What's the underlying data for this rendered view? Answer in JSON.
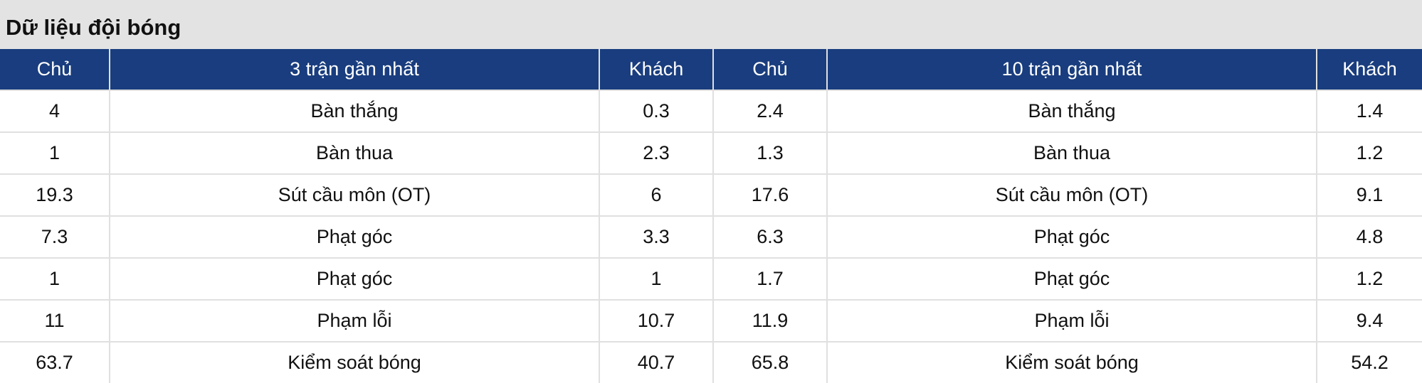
{
  "title": "Dữ liệu đội bóng",
  "headers": [
    "Chủ",
    "3 trận gần nhất",
    "Khách",
    "Chủ",
    "10 trận gần nhất",
    "Khách"
  ],
  "rows": [
    [
      "4",
      "Bàn thắng",
      "0.3",
      "2.4",
      "Bàn thắng",
      "1.4"
    ],
    [
      "1",
      "Bàn thua",
      "2.3",
      "1.3",
      "Bàn thua",
      "1.2"
    ],
    [
      "19.3",
      "Sút cầu môn (OT)",
      "6",
      "17.6",
      "Sút cầu môn (OT)",
      "9.1"
    ],
    [
      "7.3",
      "Phạt góc",
      "3.3",
      "6.3",
      "Phạt góc",
      "4.8"
    ],
    [
      "1",
      "Phạt góc",
      "1",
      "1.7",
      "Phạt góc",
      "1.2"
    ],
    [
      "11",
      "Phạm lỗi",
      "10.7",
      "11.9",
      "Phạm lỗi",
      "9.4"
    ],
    [
      "63.7",
      "Kiểm soát bóng",
      "40.7",
      "65.8",
      "Kiểm soát bóng",
      "54.2"
    ]
  ],
  "colors": {
    "header_bg": "#193d7e",
    "title_bg": "#e3e3e3"
  }
}
